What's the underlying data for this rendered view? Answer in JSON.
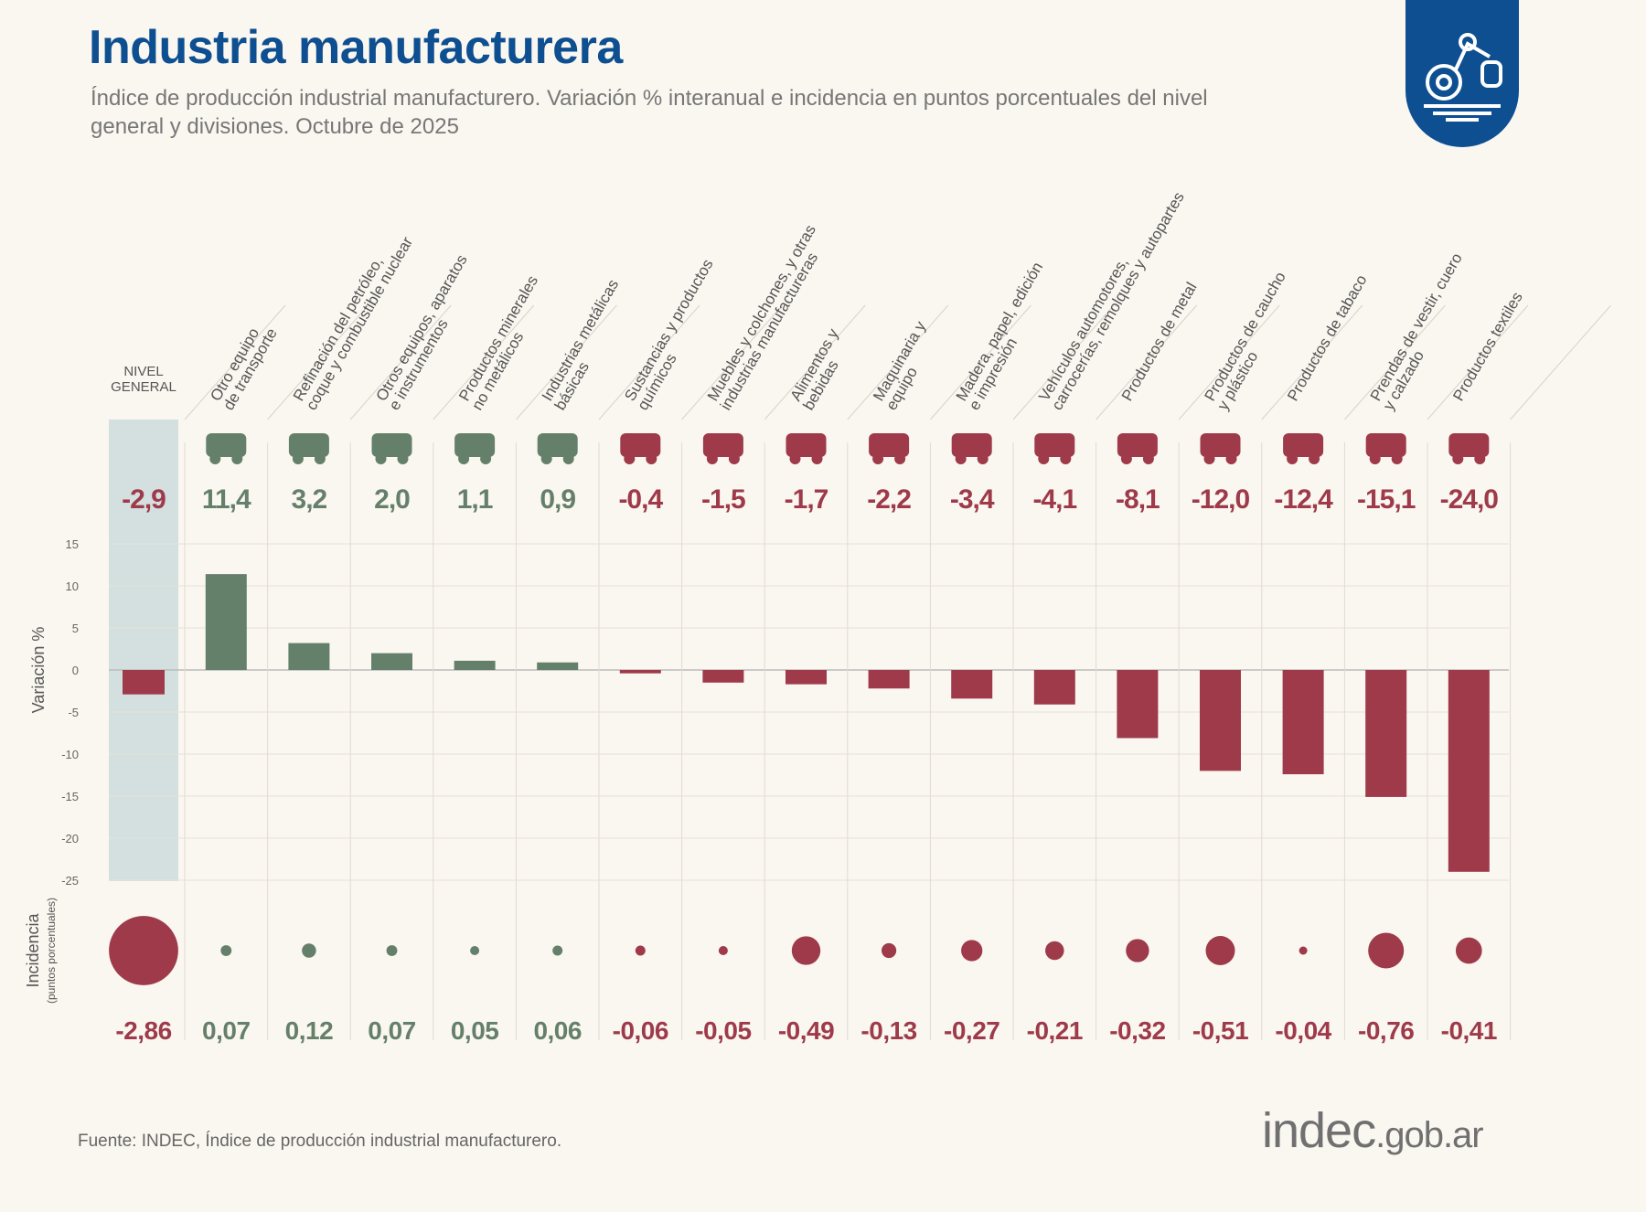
{
  "header": {
    "title": "Industria manufacturera",
    "subtitle": "Índice de producción industrial manufacturero. Variación % interanual e incidencia en puntos porcentuales del nivel general y divisiones. Octubre de 2025",
    "badge_icon": "industrial-robot-icon"
  },
  "footer": {
    "source": "Fuente: INDEC, Índice de producción industrial manufacturero.",
    "logo_main": "indec",
    "logo_domain": ".gob.ar"
  },
  "colors": {
    "positive": "#65806a",
    "negative": "#9e3a4a",
    "title": "#0d4f91",
    "highlight": "#d4e0df",
    "background": "#faf7f0"
  },
  "chart_data": {
    "type": "bar",
    "ylabel": "Variación %",
    "bubble_label": "Incidencia",
    "bubble_sublabel": "(puntos porcentuales)",
    "ylim": [
      -25,
      15
    ],
    "yticks": [
      15,
      10,
      5,
      0,
      -5,
      -10,
      -15,
      -20,
      -25
    ],
    "grid": true,
    "categories": [
      {
        "label": [
          "NIVEL",
          "GENERAL"
        ],
        "icon": "",
        "variation": -2.9,
        "variation_label": "-2,9",
        "incidence": -2.86,
        "incidence_label": "-2,86",
        "highlight": true
      },
      {
        "label": [
          "Otro equipo",
          "de transporte"
        ],
        "icon": "motorcycle-icon",
        "variation": 11.4,
        "variation_label": "11,4",
        "incidence": 0.07,
        "incidence_label": "0,07"
      },
      {
        "label": [
          "Refinación del petróleo,",
          "coque y combustible nuclear"
        ],
        "icon": "refinery-icon",
        "variation": 3.2,
        "variation_label": "3,2",
        "incidence": 0.12,
        "incidence_label": "0,12"
      },
      {
        "label": [
          "Otros equipos, aparatos",
          "e instrumentos"
        ],
        "icon": "laptop-icon",
        "variation": 2.0,
        "variation_label": "2,0",
        "incidence": 0.07,
        "incidence_label": "0,07"
      },
      {
        "label": [
          "Productos minerales",
          "no metálicos"
        ],
        "icon": "cement-mixer-icon",
        "variation": 1.1,
        "variation_label": "1,1",
        "incidence": 0.05,
        "incidence_label": "0,05"
      },
      {
        "label": [
          "Industrias metálicas",
          "básicas"
        ],
        "icon": "metal-coil-icon",
        "variation": 0.9,
        "variation_label": "0,9",
        "incidence": 0.06,
        "incidence_label": "0,06"
      },
      {
        "label": [
          "Sustancias y productos",
          "químicos"
        ],
        "icon": "flask-icon",
        "variation": -0.4,
        "variation_label": "-0,4",
        "incidence": -0.06,
        "incidence_label": "-0,06"
      },
      {
        "label": [
          "Muebles y colchones, y otras",
          "industrias manufactureras"
        ],
        "icon": "furniture-icon",
        "variation": -1.5,
        "variation_label": "-1,5",
        "incidence": -0.05,
        "incidence_label": "-0,05"
      },
      {
        "label": [
          "Alimentos y",
          "bebidas"
        ],
        "icon": "bottle-bread-icon",
        "variation": -1.7,
        "variation_label": "-1,7",
        "incidence": -0.49,
        "incidence_label": "-0,49"
      },
      {
        "label": [
          "Maquinaria y",
          "equipo"
        ],
        "icon": "tractor-icon",
        "variation": -2.2,
        "variation_label": "-2,2",
        "incidence": -0.13,
        "incidence_label": "-0,13"
      },
      {
        "label": [
          "Madera, papel, edición",
          "e impresión"
        ],
        "icon": "paper-wood-icon",
        "variation": -3.4,
        "variation_label": "-3,4",
        "incidence": -0.27,
        "incidence_label": "-0,27"
      },
      {
        "label": [
          "Vehículos automotores,",
          "carrocerías, remolques y autopartes"
        ],
        "icon": "car-icon",
        "variation": -4.1,
        "variation_label": "-4,1",
        "incidence": -0.21,
        "incidence_label": "-0,21"
      },
      {
        "label": [
          "Productos de metal"
        ],
        "icon": "hammer-icon",
        "variation": -8.1,
        "variation_label": "-8,1",
        "incidence": -0.32,
        "incidence_label": "-0,32"
      },
      {
        "label": [
          "Productos de caucho",
          "y plástico"
        ],
        "icon": "tire-icon",
        "variation": -12.0,
        "variation_label": "-12,0",
        "incidence": -0.51,
        "incidence_label": "-0,51"
      },
      {
        "label": [
          "Productos de tabaco"
        ],
        "icon": "pipe-icon",
        "variation": -12.4,
        "variation_label": "-12,4",
        "incidence": -0.04,
        "incidence_label": "-0,04"
      },
      {
        "label": [
          "Prendas de vestir, cuero",
          "y calzado"
        ],
        "icon": "sweater-icon",
        "variation": -15.1,
        "variation_label": "-15,1",
        "incidence": -0.76,
        "incidence_label": "-0,76"
      },
      {
        "label": [
          "Productos textiles"
        ],
        "icon": "thread-spool-icon",
        "variation": -24.0,
        "variation_label": "-24,0",
        "incidence": -0.41,
        "incidence_label": "-0,41"
      }
    ]
  }
}
